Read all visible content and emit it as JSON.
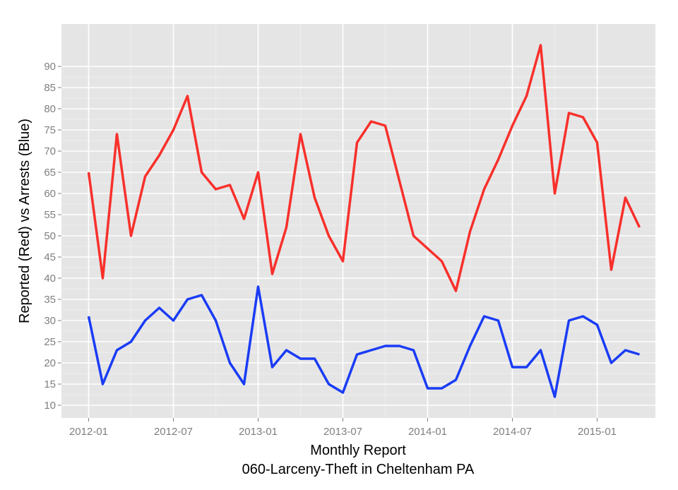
{
  "chart_data": {
    "type": "line",
    "xlabel": "Monthly Report",
    "subtitle": "060-Larceny-Theft in Cheltenham PA",
    "ylabel": "Reported (Red) vs Arrests (Blue)",
    "x": [
      "2012-01",
      "2012-02",
      "2012-03",
      "2012-04",
      "2012-05",
      "2012-06",
      "2012-07",
      "2012-08",
      "2012-09",
      "2012-10",
      "2012-11",
      "2012-12",
      "2013-01",
      "2013-02",
      "2013-03",
      "2013-04",
      "2013-05",
      "2013-06",
      "2013-07",
      "2013-08",
      "2013-09",
      "2013-10",
      "2013-11",
      "2013-12",
      "2014-01",
      "2014-02",
      "2014-03",
      "2014-04",
      "2014-05",
      "2014-06",
      "2014-07",
      "2014-08",
      "2014-09",
      "2014-10",
      "2014-11",
      "2014-12",
      "2015-01",
      "2015-02",
      "2015-03",
      "2015-04"
    ],
    "x_ticks": [
      "2012-01",
      "2012-07",
      "2013-01",
      "2013-07",
      "2014-01",
      "2014-07",
      "2015-01"
    ],
    "y_ticks": [
      10,
      15,
      20,
      25,
      30,
      35,
      40,
      45,
      50,
      55,
      60,
      65,
      70,
      75,
      80,
      85,
      90
    ],
    "ylim": [
      7,
      100
    ],
    "grid": true,
    "series": [
      {
        "color": "#f8302b",
        "values": [
          65,
          40,
          74,
          50,
          64,
          69,
          75,
          83,
          65,
          61,
          62,
          54,
          65,
          41,
          52,
          74,
          59,
          50,
          44,
          72,
          77,
          76,
          63,
          50,
          47,
          44,
          37,
          51,
          61,
          68,
          76,
          83,
          95,
          60,
          79,
          78,
          72,
          42,
          59,
          52
        ]
      },
      {
        "color": "#1a3cf5",
        "values": [
          31,
          15,
          23,
          25,
          30,
          33,
          30,
          35,
          36,
          30,
          20,
          15,
          38,
          19,
          23,
          21,
          21,
          15,
          13,
          22,
          23,
          24,
          24,
          23,
          14,
          14,
          16,
          24,
          31,
          30,
          19,
          19,
          23,
          12,
          30,
          31,
          29,
          20,
          23,
          22
        ]
      }
    ]
  }
}
